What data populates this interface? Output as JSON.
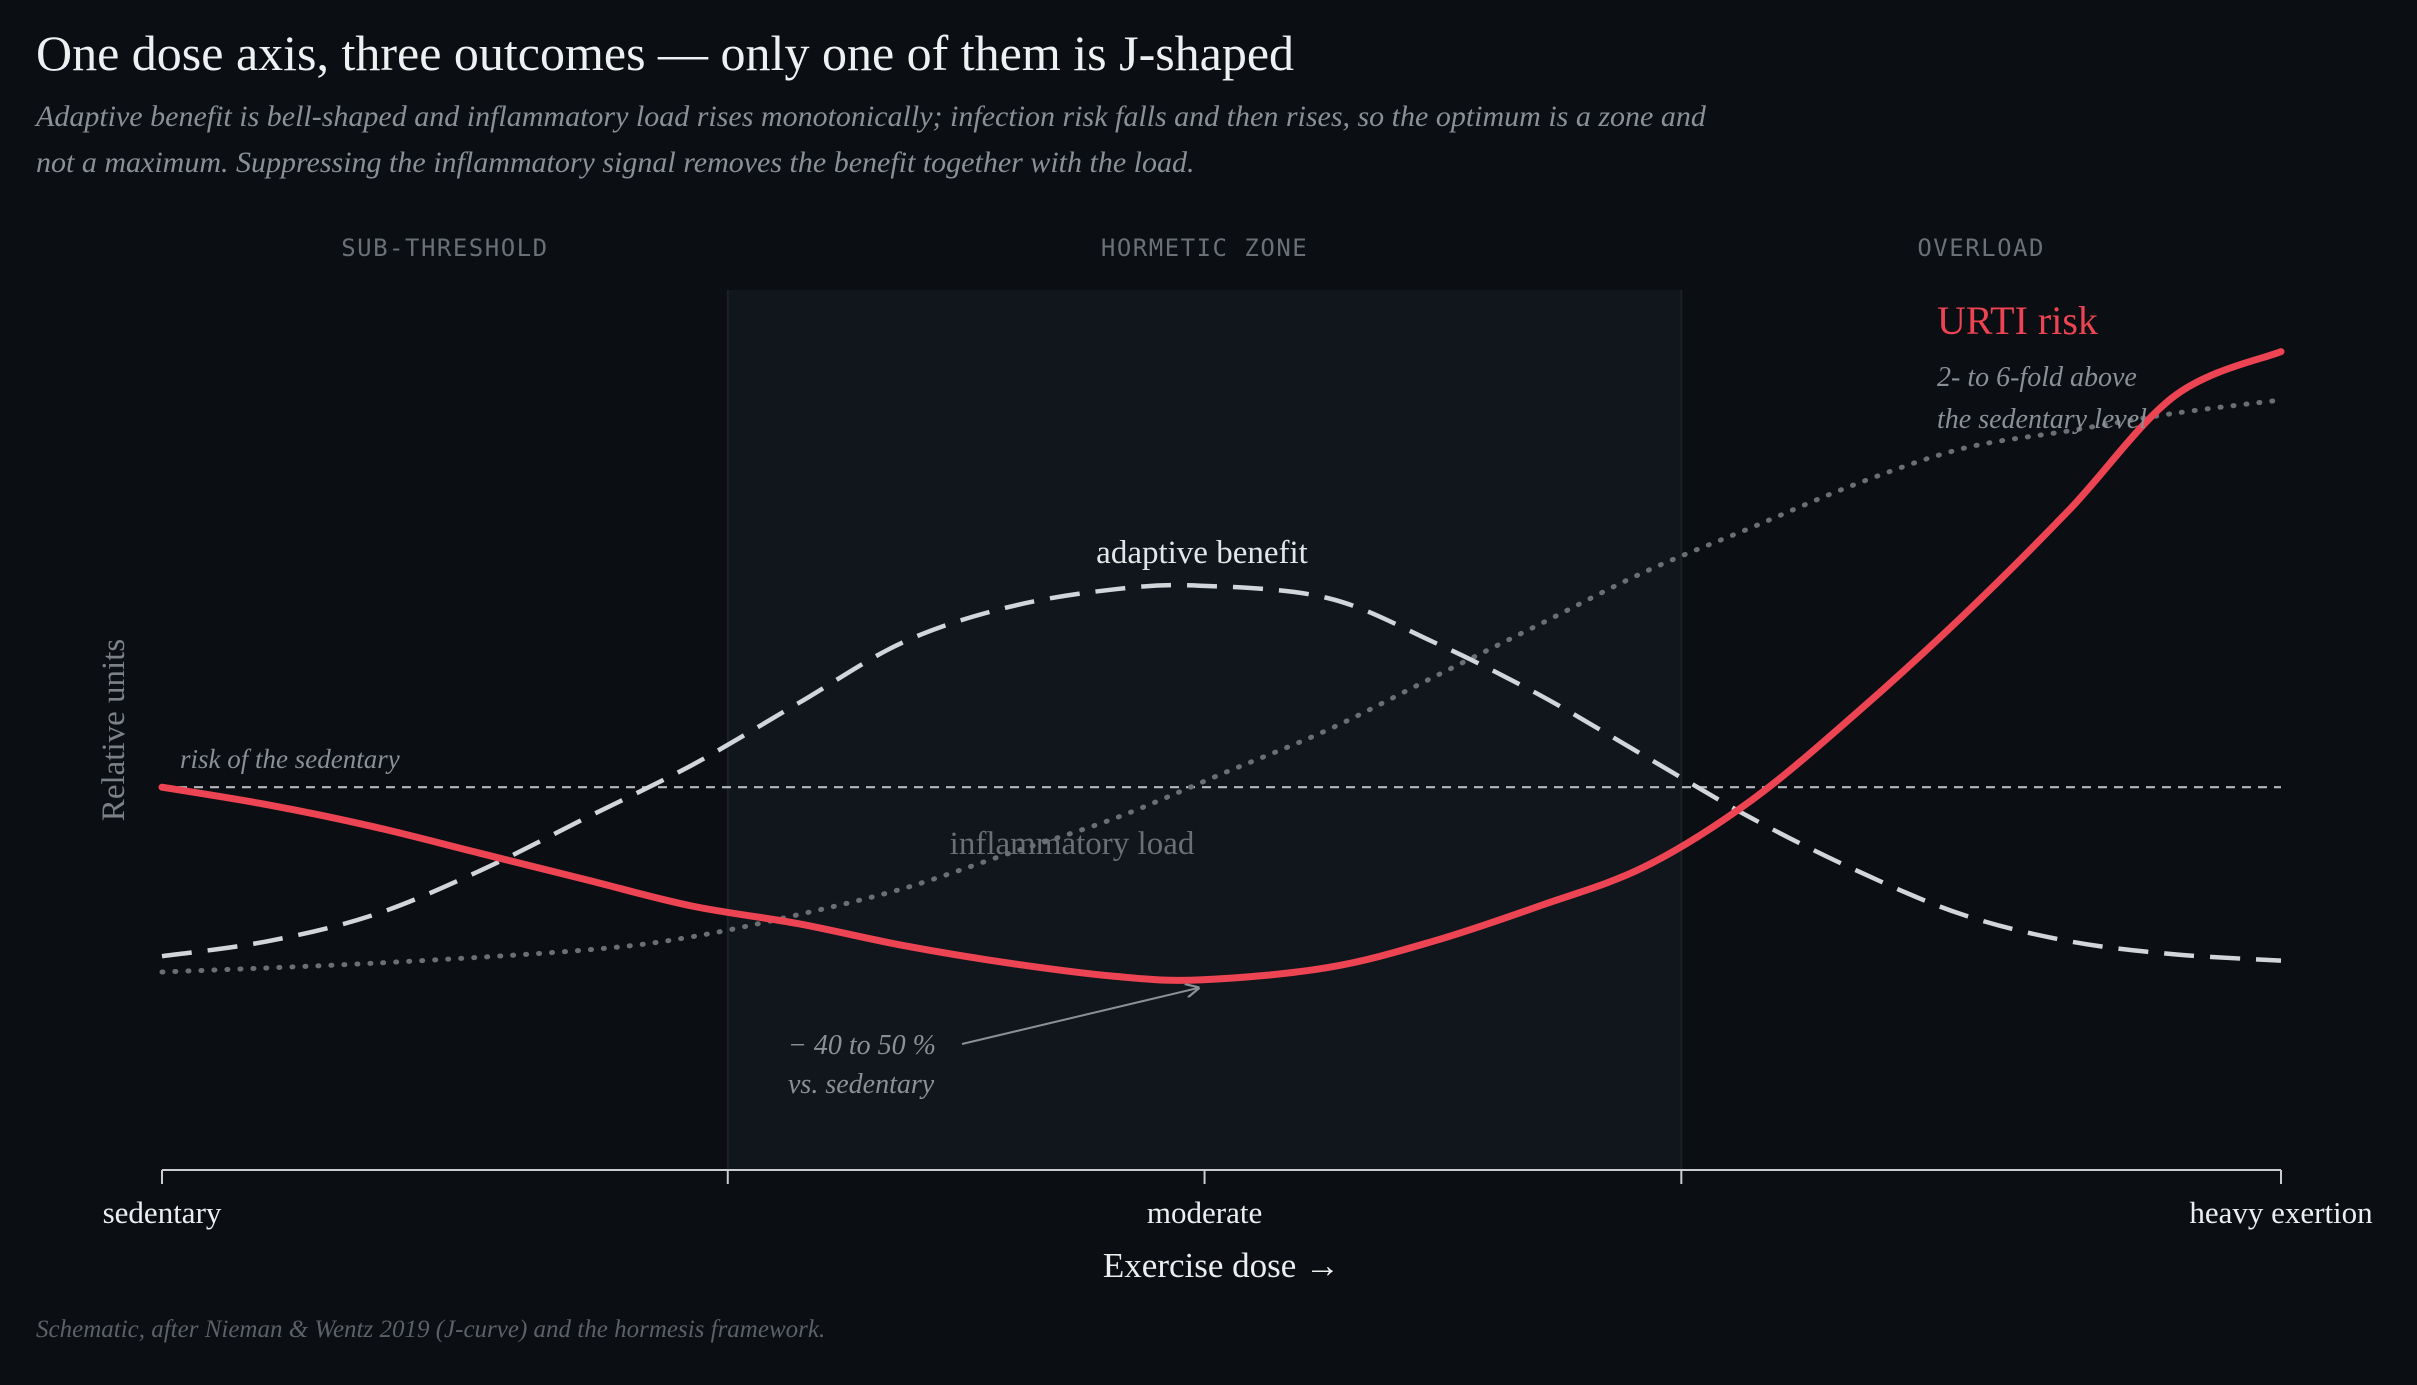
{
  "title": "One dose axis, three outcomes — only one of them is J-shaped",
  "subtitle": "Adaptive benefit is bell-shaped and inflammatory load rises monotonically; infection risk falls and then rises, so the optimum is a zone and not a maximum. Suppressing the inflammatory signal removes the benefit together with the load.",
  "footer": "Schematic, after Nieman & Wentz 2019 (J-curve) and the hormesis framework.",
  "colors": {
    "background": "#0b0e12",
    "zone": "#10161b",
    "risk": "#ec4452",
    "benefit": "#d2d6da",
    "inflammation": "#6b6f74",
    "baseline": "#d2d6da"
  },
  "chart_data": {
    "type": "line",
    "xlabel": "Exercise dose →",
    "ylabel": "Relative units",
    "xlim": [
      0,
      1
    ],
    "ylim": [
      0,
      1
    ],
    "x_ticks": [
      {
        "x": 0.0,
        "label": "sedentary"
      },
      {
        "x": 0.267,
        "label": ""
      },
      {
        "x": 0.492,
        "label": "moderate"
      },
      {
        "x": 0.717,
        "label": ""
      },
      {
        "x": 1.0,
        "label": "heavy exertion"
      }
    ],
    "zones": [
      {
        "label": "SUB-THRESHOLD",
        "from": 0.0,
        "to": 0.267,
        "shaded": false
      },
      {
        "label": "HORMETIC ZONE",
        "from": 0.267,
        "to": 0.717,
        "shaded": true
      },
      {
        "label": "OVERLOAD",
        "from": 0.717,
        "to": 1.0,
        "shaded": false
      }
    ],
    "baseline": {
      "y": 0.435,
      "label": "risk of the sedentary"
    },
    "series": [
      {
        "name": "URTI risk",
        "style": "solid",
        "note": [
          "2- to 6-fold above",
          "the sedentary level"
        ],
        "x": [
          0,
          0.05,
          0.1,
          0.15,
          0.2,
          0.25,
          0.3,
          0.35,
          0.4,
          0.45,
          0.49,
          0.55,
          0.6,
          0.65,
          0.7,
          0.75,
          0.8,
          0.85,
          0.9,
          0.95,
          1.0
        ],
        "y": [
          0.435,
          0.415,
          0.39,
          0.36,
          0.33,
          0.3,
          0.28,
          0.255,
          0.235,
          0.22,
          0.216,
          0.23,
          0.26,
          0.3,
          0.345,
          0.42,
          0.52,
          0.63,
          0.75,
          0.88,
          0.93
        ]
      },
      {
        "name": "adaptive benefit",
        "style": "dashed",
        "x": [
          0,
          0.05,
          0.1,
          0.15,
          0.2,
          0.25,
          0.3,
          0.35,
          0.4,
          0.45,
          0.49,
          0.55,
          0.6,
          0.65,
          0.7,
          0.75,
          0.8,
          0.85,
          0.9,
          0.95,
          1.0
        ],
        "y": [
          0.243,
          0.26,
          0.29,
          0.34,
          0.4,
          0.46,
          0.53,
          0.6,
          0.64,
          0.66,
          0.664,
          0.65,
          0.6,
          0.54,
          0.47,
          0.4,
          0.34,
          0.29,
          0.26,
          0.245,
          0.238
        ]
      },
      {
        "name": "inflammatory load",
        "style": "dotted",
        "x": [
          0,
          0.1,
          0.2,
          0.25,
          0.3,
          0.35,
          0.4,
          0.45,
          0.5,
          0.55,
          0.6,
          0.65,
          0.7,
          0.75,
          0.8,
          0.85,
          0.9,
          0.95,
          1.0
        ],
        "y": [
          0.225,
          0.235,
          0.25,
          0.265,
          0.29,
          0.32,
          0.36,
          0.4,
          0.45,
          0.5,
          0.56,
          0.62,
          0.68,
          0.73,
          0.78,
          0.82,
          0.84,
          0.86,
          0.875
        ]
      }
    ],
    "annotations": [
      {
        "text": [
          "− 40 to 50 %",
          "vs. sedentary"
        ],
        "target_x": 0.49,
        "target_y": 0.216
      }
    ]
  }
}
